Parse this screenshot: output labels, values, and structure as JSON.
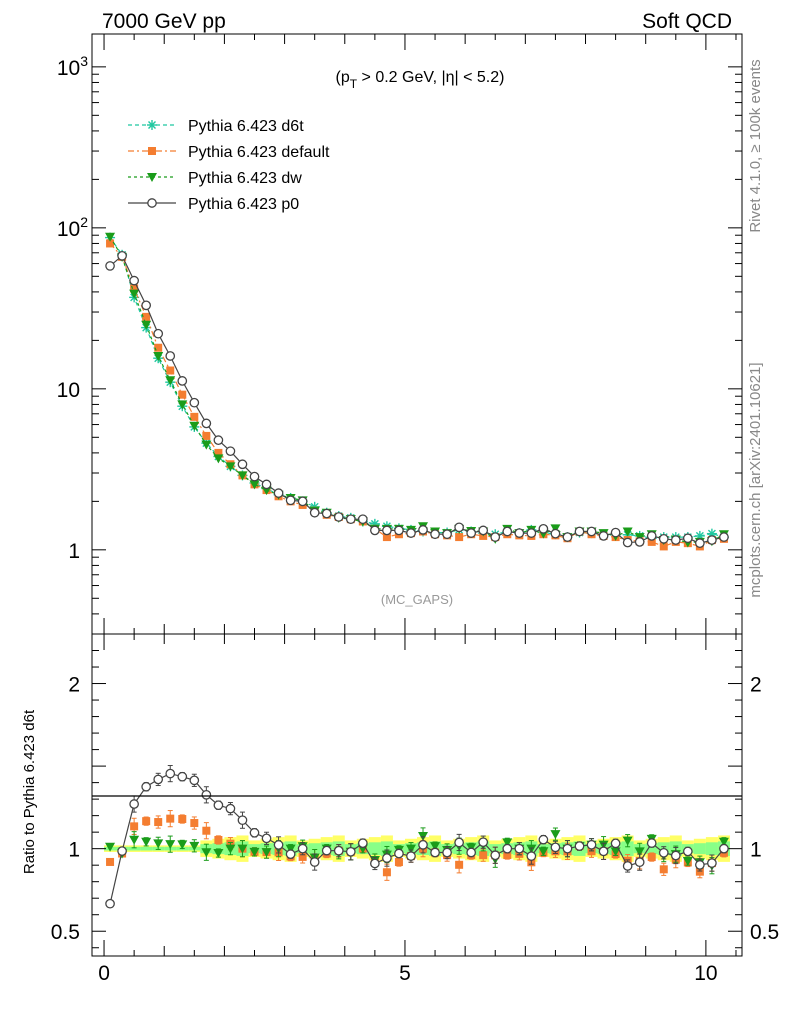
{
  "header": {
    "left": "7000 GeV pp",
    "right": "Soft QCD"
  },
  "side_labels": {
    "rivet": "Rivet 4.1.0, ≥ 100k events",
    "mcplots": "mcplots.cern.ch [arXiv:2401.10621]"
  },
  "watermark": "(MC_GAPS)",
  "cut_label": {
    "pre": "(p",
    "sub": "T",
    "post": " > 0.2 GeV, |η| < 5.2)"
  },
  "colors": {
    "d6t": "#1fc8a0",
    "default": "#f47d30",
    "dw": "#1a9c1a",
    "p0": "#444444",
    "band_yellow": "#ffff66",
    "band_green": "#88ff88"
  },
  "chart_data": {
    "type": "line",
    "title": "",
    "xlabel": "",
    "ylabel_ratio": "Ratio to Pythia 6.423 d6t",
    "xlim": [
      -0.2,
      10.6
    ],
    "main_ylim": [
      0.3,
      1600
    ],
    "main_yscale": "log",
    "main_yticks": [
      {
        "v": 1000,
        "label": "10",
        "sup": "3"
      },
      {
        "v": 100,
        "label": "10",
        "sup": "2"
      },
      {
        "v": 10,
        "label": "10",
        "sup": ""
      },
      {
        "v": 1,
        "label": "1",
        "sup": ""
      }
    ],
    "ratio_ylim": [
      0.35,
      2.3
    ],
    "ratio_yticks": [
      {
        "v": 2,
        "label": "2"
      },
      {
        "v": 1,
        "label": "1"
      },
      {
        "v": 0.5,
        "label": "0.5"
      }
    ],
    "xticks": [
      {
        "v": 0,
        "label": "0"
      },
      {
        "v": 5,
        "label": "5"
      },
      {
        "v": 10,
        "label": "10"
      }
    ],
    "x": [
      0.1,
      0.3,
      0.5,
      0.7,
      0.9,
      1.1,
      1.3,
      1.5,
      1.7,
      1.9,
      2.1,
      2.3,
      2.5,
      2.7,
      2.9,
      3.1,
      3.3,
      3.5,
      3.7,
      3.9,
      4.1,
      4.3,
      4.5,
      4.7,
      4.9,
      5.1,
      5.3,
      5.5,
      5.7,
      5.9,
      6.1,
      6.3,
      6.5,
      6.7,
      6.9,
      7.1,
      7.3,
      7.5,
      7.7,
      7.9,
      8.1,
      8.3,
      8.5,
      8.7,
      8.9,
      9.1,
      9.3,
      9.5,
      9.7,
      9.9,
      10.1,
      10.3
    ],
    "legend": [
      {
        "key": "d6t",
        "label": "Pythia 6.423 d6t"
      },
      {
        "key": "default",
        "label": "Pythia 6.423 default"
      },
      {
        "key": "dw",
        "label": "Pythia 6.423 dw"
      },
      {
        "key": "p0",
        "label": "Pythia 6.423 p0"
      }
    ],
    "series": [
      {
        "key": "d6t",
        "name": "Pythia 6.423 d6t",
        "marker": "star",
        "dash": "4,3",
        "values": [
          87,
          68,
          37,
          24,
          15.5,
          11,
          7.8,
          5.8,
          4.6,
          3.8,
          3.3,
          2.9,
          2.6,
          2.4,
          2.2,
          2.1,
          2.0,
          1.85,
          1.7,
          1.62,
          1.58,
          1.5,
          1.45,
          1.4,
          1.36,
          1.33,
          1.3,
          1.28,
          1.28,
          1.33,
          1.3,
          1.27,
          1.25,
          1.3,
          1.27,
          1.33,
          1.28,
          1.25,
          1.2,
          1.28,
          1.27,
          1.24,
          1.24,
          1.24,
          1.22,
          1.18,
          1.2,
          1.2,
          1.2,
          1.22,
          1.26,
          1.2
        ]
      },
      {
        "key": "default",
        "name": "Pythia 6.423 default",
        "marker": "square",
        "dash": "6,3,2,3",
        "values": [
          80,
          66,
          42,
          28,
          18,
          13,
          9.2,
          6.7,
          5.1,
          4.0,
          3.4,
          2.9,
          2.55,
          2.35,
          2.15,
          2.0,
          1.9,
          1.75,
          1.65,
          1.6,
          1.55,
          1.5,
          1.35,
          1.2,
          1.25,
          1.27,
          1.3,
          1.25,
          1.23,
          1.2,
          1.25,
          1.22,
          1.2,
          1.25,
          1.23,
          1.22,
          1.25,
          1.23,
          1.18,
          1.3,
          1.25,
          1.22,
          1.2,
          1.15,
          1.13,
          1.12,
          1.05,
          1.12,
          1.1,
          1.05,
          1.15,
          1.17
        ]
      },
      {
        "key": "dw",
        "name": "Pythia 6.423 dw",
        "marker": "tri",
        "dash": "3,3",
        "values": [
          88,
          66,
          39,
          25,
          16,
          11.3,
          8.0,
          5.9,
          4.5,
          3.7,
          3.3,
          2.9,
          2.55,
          2.35,
          2.2,
          2.1,
          2.03,
          1.75,
          1.7,
          1.58,
          1.55,
          1.5,
          1.35,
          1.35,
          1.35,
          1.33,
          1.4,
          1.3,
          1.27,
          1.35,
          1.31,
          1.3,
          1.17,
          1.35,
          1.27,
          1.33,
          1.26,
          1.36,
          1.2,
          1.3,
          1.3,
          1.27,
          1.22,
          1.3,
          1.2,
          1.25,
          1.15,
          1.16,
          1.11,
          1.12,
          1.13,
          1.25
        ]
      },
      {
        "key": "p0",
        "name": "Pythia 6.423 p0",
        "marker": "circle",
        "dash": "",
        "values": [
          58,
          67,
          47,
          33,
          22,
          16,
          11.2,
          8.2,
          6.1,
          4.8,
          4.1,
          3.4,
          2.85,
          2.55,
          2.25,
          2.03,
          2.0,
          1.7,
          1.68,
          1.6,
          1.55,
          1.55,
          1.32,
          1.32,
          1.32,
          1.27,
          1.33,
          1.25,
          1.25,
          1.38,
          1.27,
          1.32,
          1.2,
          1.3,
          1.27,
          1.27,
          1.35,
          1.26,
          1.2,
          1.3,
          1.3,
          1.22,
          1.28,
          1.11,
          1.12,
          1.22,
          1.17,
          1.15,
          1.18,
          1.1,
          1.15,
          1.2
        ]
      }
    ]
  }
}
